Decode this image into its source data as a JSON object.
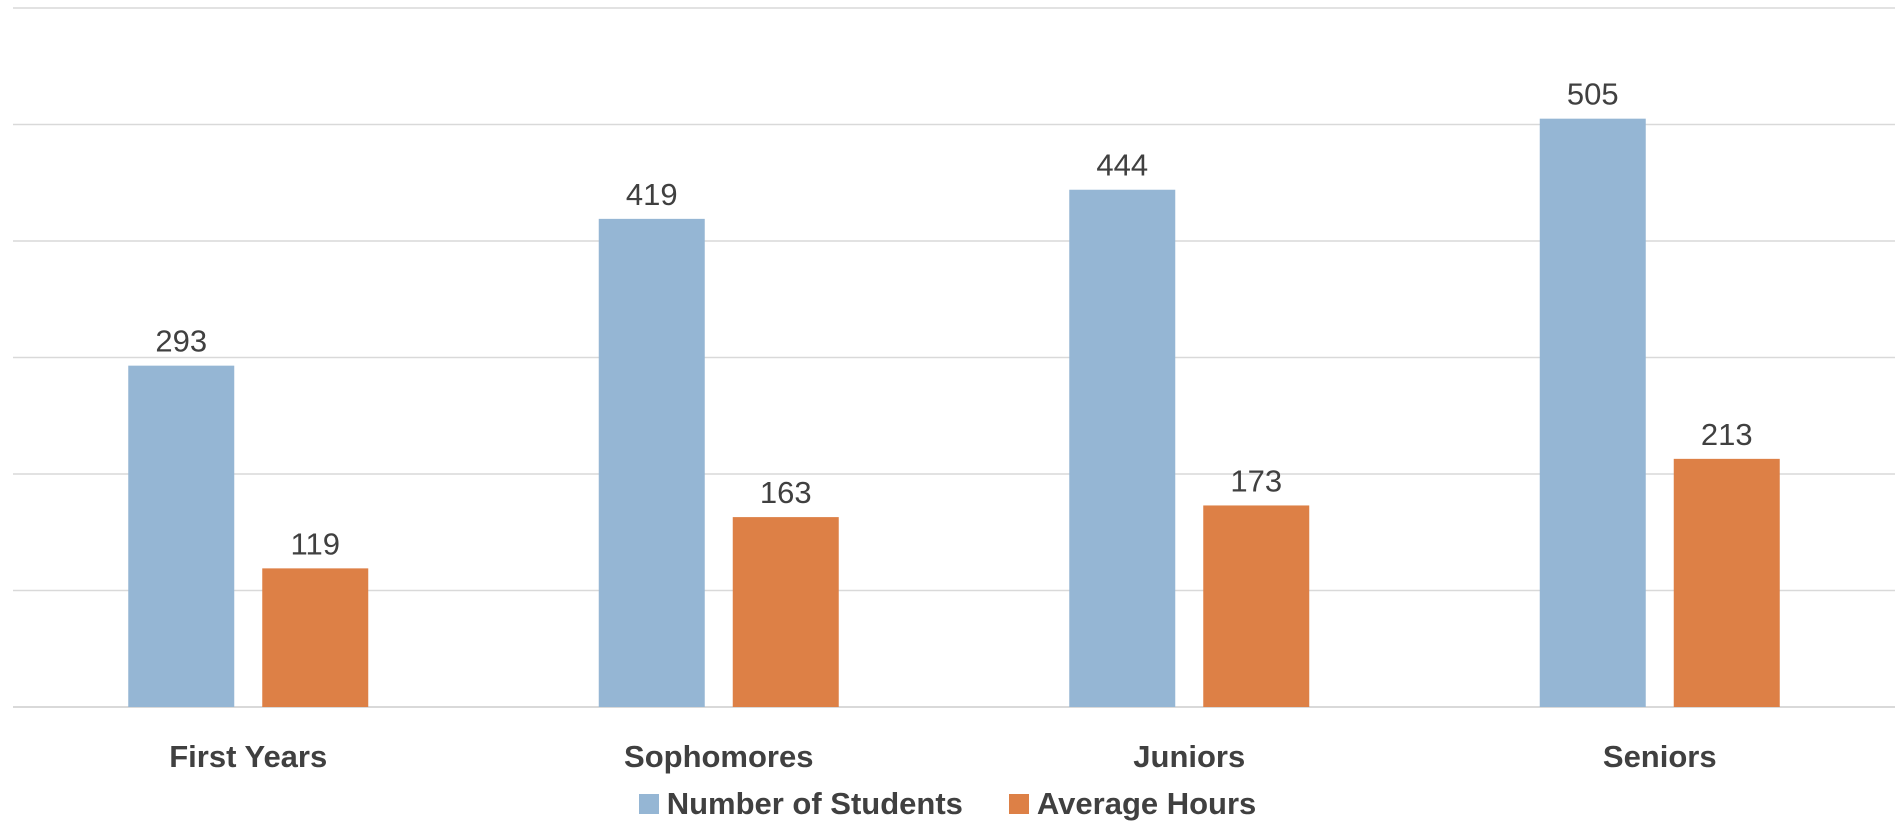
{
  "chart_data": {
    "type": "bar",
    "title": "",
    "xlabel": "",
    "ylabel": "",
    "categories": [
      "First Years",
      "Sophomores",
      "Juniors",
      "Seniors"
    ],
    "series": [
      {
        "name": "Number of Students",
        "values": [
          293,
          419,
          444,
          505
        ],
        "color": "#95B6D4"
      },
      {
        "name": "Average Hours",
        "values": [
          119,
          163,
          173,
          213
        ],
        "color": "#DD8046"
      }
    ],
    "ylim": [
      0,
      600
    ],
    "gridlines": true,
    "gridline_step": 100,
    "y_axis_labels_shown": false,
    "data_labels_shown": true,
    "legend_position": "bottom"
  }
}
